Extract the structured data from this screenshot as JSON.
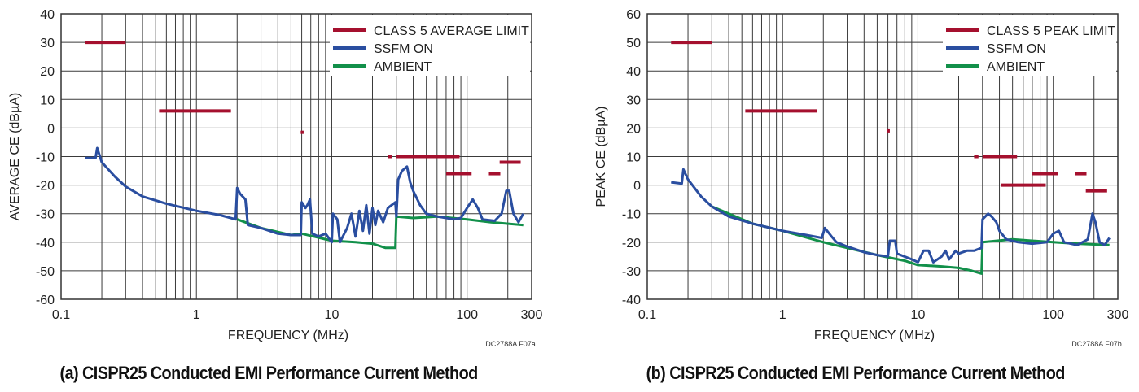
{
  "chart_data": [
    {
      "type": "line",
      "caption": "(a) CISPR25 Conducted EMI Performance Current Method",
      "xlabel": "FREQUENCY (MHz)",
      "ylabel": "AVERAGE CE (dBµA)",
      "code": "DC2788A F07a",
      "xscale": "log",
      "xlim": [
        0.1,
        300
      ],
      "ylim": [
        -60,
        40
      ],
      "xticks": [
        0.1,
        1,
        10,
        100,
        300
      ],
      "xtick_labels": [
        "0.1",
        "1",
        "10",
        "100",
        "300"
      ],
      "yticks": [
        40,
        30,
        20,
        10,
        0,
        -10,
        -20,
        -30,
        -40,
        -50,
        -60
      ],
      "grid": true,
      "legend": "top-right",
      "colors": {
        "limit": "#a5102e",
        "ssfm": "#2a4ea0",
        "ambient": "#12904a"
      },
      "limit": {
        "name": "CLASS 5 AVERAGE LIMIT",
        "segments": [
          [
            0.15,
            0.3,
            30
          ],
          [
            0.53,
            1.8,
            6
          ],
          [
            5.9,
            6.2,
            -1.5
          ],
          [
            26,
            28,
            -10
          ],
          [
            30,
            88,
            -10
          ],
          [
            70,
            108,
            -16
          ],
          [
            145,
            176,
            -16
          ],
          [
            174,
            249,
            -12
          ]
        ]
      },
      "series": [
        {
          "name": "SSFM ON",
          "key": "ssfm",
          "points": [
            [
              0.15,
              -10.5
            ],
            [
              0.18,
              -10.5
            ],
            [
              0.185,
              -7
            ],
            [
              0.2,
              -12
            ],
            [
              0.25,
              -17
            ],
            [
              0.3,
              -20.5
            ],
            [
              0.4,
              -24
            ],
            [
              0.6,
              -26.5
            ],
            [
              1,
              -29
            ],
            [
              1.5,
              -30.5
            ],
            [
              1.95,
              -32
            ],
            [
              2.0,
              -21
            ],
            [
              2.1,
              -23
            ],
            [
              2.3,
              -25
            ],
            [
              2.4,
              -34
            ],
            [
              3,
              -35
            ],
            [
              4,
              -37
            ],
            [
              5,
              -37.5
            ],
            [
              5.9,
              -37.5
            ],
            [
              6.0,
              -26
            ],
            [
              6.4,
              -28
            ],
            [
              6.6,
              -27
            ],
            [
              6.9,
              -25
            ],
            [
              7.2,
              -37
            ],
            [
              8,
              -38
            ],
            [
              9,
              -37
            ],
            [
              10,
              -40
            ],
            [
              10.2,
              -30
            ],
            [
              11,
              -32
            ],
            [
              11.5,
              -40
            ],
            [
              13,
              -35
            ],
            [
              14,
              -30
            ],
            [
              15,
              -38
            ],
            [
              16,
              -29
            ],
            [
              17,
              -36
            ],
            [
              18,
              -27
            ],
            [
              19,
              -37
            ],
            [
              20,
              -28
            ],
            [
              21,
              -34
            ],
            [
              22,
              -29
            ],
            [
              24,
              -33
            ],
            [
              26,
              -28
            ],
            [
              29.5,
              -26
            ],
            [
              30,
              -31
            ],
            [
              31,
              -18
            ],
            [
              33,
              -15
            ],
            [
              36,
              -13.5
            ],
            [
              38,
              -19
            ],
            [
              40,
              -22
            ],
            [
              45,
              -27
            ],
            [
              50,
              -30
            ],
            [
              60,
              -31
            ],
            [
              80,
              -32
            ],
            [
              90,
              -31.5
            ],
            [
              100,
              -28
            ],
            [
              110,
              -25
            ],
            [
              120,
              -28
            ],
            [
              130,
              -32
            ],
            [
              160,
              -32.5
            ],
            [
              180,
              -30
            ],
            [
              195,
              -22
            ],
            [
              205,
              -22
            ],
            [
              220,
              -30
            ],
            [
              240,
              -33
            ],
            [
              260,
              -30
            ]
          ]
        },
        {
          "name": "AMBIENT",
          "key": "ambient",
          "points": [
            [
              2,
              -32
            ],
            [
              3,
              -35
            ],
            [
              5,
              -37.5
            ],
            [
              6,
              -37
            ],
            [
              10,
              -39.5
            ],
            [
              15,
              -40
            ],
            [
              20,
              -40.5
            ],
            [
              25,
              -42
            ],
            [
              29.5,
              -42
            ],
            [
              30,
              -31
            ],
            [
              40,
              -31.5
            ],
            [
              60,
              -31
            ],
            [
              100,
              -32
            ],
            [
              150,
              -33
            ],
            [
              260,
              -34
            ]
          ]
        }
      ]
    },
    {
      "type": "line",
      "caption": "(b) CISPR25 Conducted EMI Performance Current Method",
      "xlabel": "FREQUENCY (MHz)",
      "ylabel": "PEAK CE (dBµA)",
      "code": "DC2788A F07b",
      "xscale": "log",
      "xlim": [
        0.1,
        300
      ],
      "ylim": [
        -40,
        60
      ],
      "xticks": [
        0.1,
        1,
        10,
        100,
        300
      ],
      "xtick_labels": [
        "0.1",
        "1",
        "10",
        "100",
        "300"
      ],
      "yticks": [
        60,
        50,
        40,
        30,
        20,
        10,
        0,
        -10,
        -20,
        -30,
        -40
      ],
      "grid": true,
      "legend": "top-right",
      "colors": {
        "limit": "#a5102e",
        "ssfm": "#2a4ea0",
        "ambient": "#12904a"
      },
      "limit": {
        "name": "CLASS 5 PEAK LIMIT",
        "segments": [
          [
            0.15,
            0.3,
            50
          ],
          [
            0.53,
            1.8,
            26
          ],
          [
            5.9,
            6.2,
            19
          ],
          [
            26,
            28,
            10
          ],
          [
            30,
            54,
            10
          ],
          [
            70,
            108,
            4
          ],
          [
            41,
            88,
            0
          ],
          [
            145,
            176,
            4
          ],
          [
            174,
            250,
            -2
          ]
        ]
      },
      "series": [
        {
          "name": "SSFM ON",
          "key": "ssfm",
          "points": [
            [
              0.15,
              1
            ],
            [
              0.18,
              0.5
            ],
            [
              0.185,
              5.5
            ],
            [
              0.2,
              2
            ],
            [
              0.25,
              -4
            ],
            [
              0.3,
              -7.5
            ],
            [
              0.4,
              -11
            ],
            [
              0.6,
              -13.5
            ],
            [
              1,
              -16
            ],
            [
              1.5,
              -17.5
            ],
            [
              1.95,
              -18.5
            ],
            [
              2.05,
              -15
            ],
            [
              2.3,
              -18
            ],
            [
              2.5,
              -20
            ],
            [
              3,
              -21.5
            ],
            [
              4,
              -23.5
            ],
            [
              5,
              -24.5
            ],
            [
              6,
              -25
            ],
            [
              6.2,
              -19.5
            ],
            [
              6.8,
              -19.5
            ],
            [
              7,
              -24
            ],
            [
              9,
              -26
            ],
            [
              10,
              -27
            ],
            [
              11,
              -23
            ],
            [
              12,
              -23
            ],
            [
              13,
              -27
            ],
            [
              15,
              -25
            ],
            [
              16,
              -23
            ],
            [
              17,
              -26
            ],
            [
              19,
              -23
            ],
            [
              20,
              -24
            ],
            [
              23,
              -23
            ],
            [
              26,
              -23
            ],
            [
              29.5,
              -22
            ],
            [
              30,
              -12
            ],
            [
              33,
              -10
            ],
            [
              35,
              -11
            ],
            [
              38,
              -13
            ],
            [
              40,
              -16
            ],
            [
              45,
              -19
            ],
            [
              55,
              -20
            ],
            [
              70,
              -20.5
            ],
            [
              90,
              -20
            ],
            [
              100,
              -17
            ],
            [
              110,
              -16
            ],
            [
              120,
              -20
            ],
            [
              150,
              -21
            ],
            [
              180,
              -19
            ],
            [
              195,
              -10
            ],
            [
              205,
              -13
            ],
            [
              220,
              -20
            ],
            [
              240,
              -21
            ],
            [
              260,
              -18.5
            ]
          ]
        },
        {
          "name": "AMBIENT",
          "key": "ambient",
          "points": [
            [
              0.3,
              -7.5
            ],
            [
              0.6,
              -13.5
            ],
            [
              1,
              -16
            ],
            [
              2,
              -20
            ],
            [
              3,
              -22
            ],
            [
              5,
              -24.5
            ],
            [
              8,
              -26.5
            ],
            [
              10,
              -28
            ],
            [
              15,
              -28.5
            ],
            [
              20,
              -29
            ],
            [
              25,
              -30
            ],
            [
              29.5,
              -31
            ],
            [
              30,
              -20
            ],
            [
              50,
              -19
            ],
            [
              100,
              -20
            ],
            [
              150,
              -20.5
            ],
            [
              260,
              -21
            ]
          ]
        }
      ]
    }
  ]
}
